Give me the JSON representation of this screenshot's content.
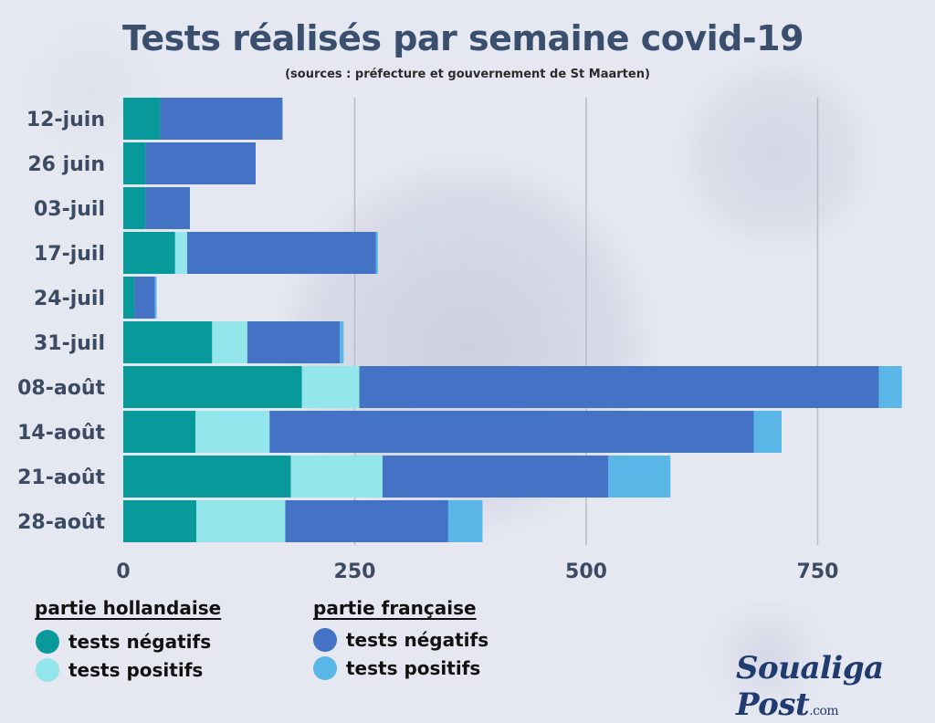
{
  "title": "Tests réalisés par semaine covid-19",
  "subtitle": "(sources : préfecture et gouvernement de St Maarten)",
  "colors": {
    "nl_neg": "#08999a",
    "nl_pos": "#93e6ea",
    "fr_neg": "#4472c4",
    "fr_pos": "#5bb6e8"
  },
  "legend": {
    "nl_heading": "partie hollandaise",
    "fr_heading": "partie française",
    "nl_neg": "tests négatifs",
    "nl_pos": "tests positifs",
    "fr_neg": "tests négatifs",
    "fr_pos": "tests positifs"
  },
  "logo": {
    "name": "Soualiga Post",
    "suffix": ".com"
  },
  "chart_data": {
    "type": "bar",
    "orientation": "horizontal",
    "stacked": true,
    "categories": [
      "12-juin",
      "26 juin",
      "03-juil",
      "17-juil",
      "24-juil",
      "31-juil",
      "08-août",
      "14-août",
      "21-août",
      "28-août"
    ],
    "series": [
      {
        "name": "partie hollandaise tests négatifs",
        "values": [
          40,
          24,
          24,
          56,
          12,
          96,
          193,
          78,
          181,
          79
        ]
      },
      {
        "name": "partie hollandaise tests positifs",
        "values": [
          0,
          0,
          0,
          13,
          0,
          38,
          62,
          80,
          99,
          96
        ]
      },
      {
        "name": "partie française tests négatifs",
        "values": [
          132,
          119,
          48,
          204,
          22,
          100,
          561,
          523,
          244,
          176
        ]
      },
      {
        "name": "partie française tests positifs",
        "values": [
          0,
          0,
          0,
          2,
          2,
          4,
          25,
          30,
          67,
          37
        ]
      }
    ],
    "xticks": [
      0,
      250,
      500,
      750
    ],
    "xlim": [
      0,
      840
    ],
    "grid": true,
    "legend_position": "bottom"
  }
}
